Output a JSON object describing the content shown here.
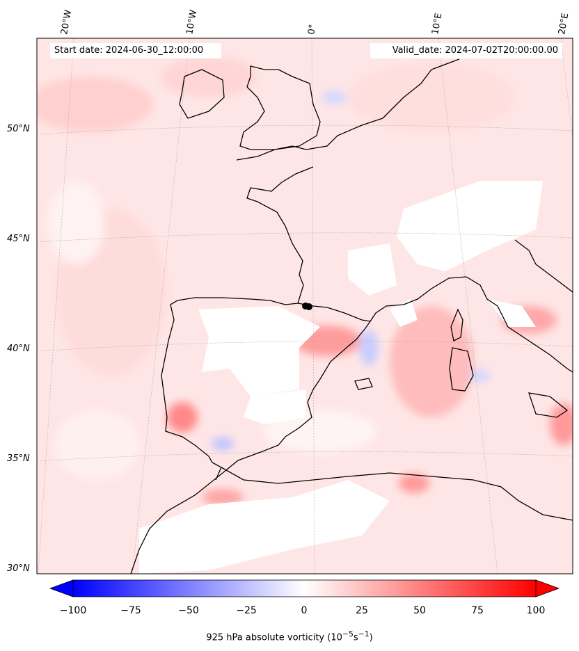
{
  "header": {
    "start_date": "Start date: 2024-06-30_12:00:00",
    "valid_date": "Valid_date: 2024-07-02T20:00:00.00"
  },
  "map": {
    "region": "Western Europe / Iberia",
    "longitude_labels": [
      "20°W",
      "10°W",
      "0°",
      "10°E",
      "20°E"
    ],
    "latitude_labels": [
      "50°N",
      "45°N",
      "40°N",
      "35°N",
      "30°N"
    ],
    "field": "925 hPa absolute vorticity",
    "marker": "black-dot"
  },
  "colorbar": {
    "tick_labels": [
      "−100",
      "−75",
      "−50",
      "−25",
      "0",
      "25",
      "50",
      "75",
      "100"
    ],
    "min": -100,
    "max": 100,
    "negative_color": "#0000ff",
    "positive_color": "#ff0000",
    "label": "925 hPa absolute vorticity (10",
    "label_exp1": "−5",
    "label_mid": "s",
    "label_exp2": "−1",
    "label_end": ")"
  }
}
